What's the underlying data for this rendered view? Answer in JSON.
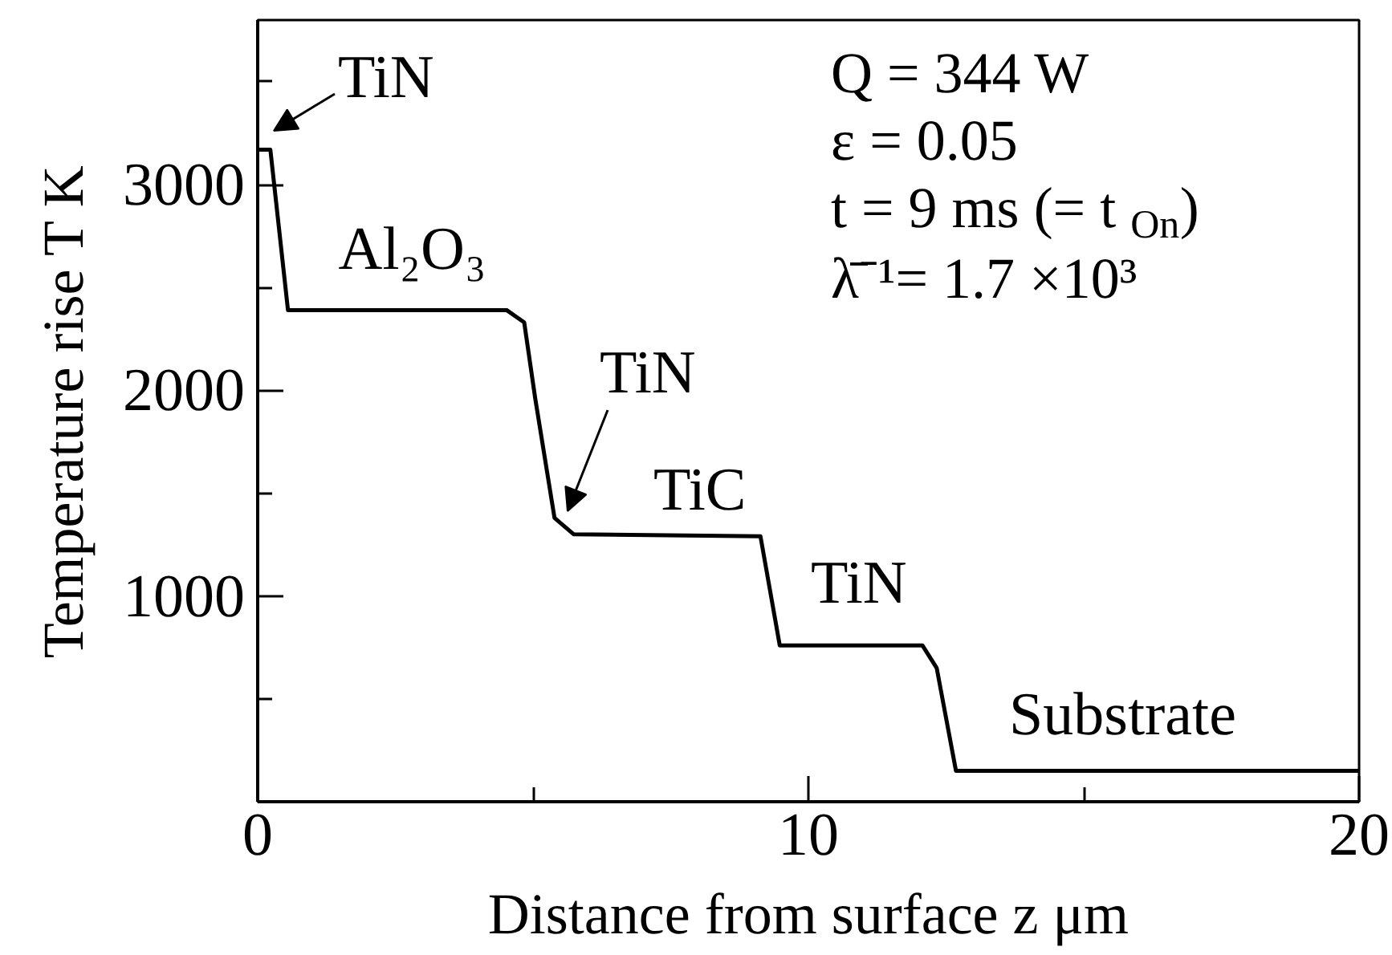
{
  "chart_data": {
    "type": "line",
    "xlabel": "Distance from surface z μm",
    "ylabel": "Temperature rise T K",
    "x": [
      0,
      0.23,
      0.55,
      4.52,
      4.84,
      5.04,
      5.39,
      5.74,
      9.13,
      9.48,
      12.07,
      12.33,
      12.68,
      20
    ],
    "series": [
      {
        "color": "#000000",
        "values": [
          3170,
          3170,
          2390,
          2390,
          2330,
          1960,
          1380,
          1300,
          1290,
          760,
          760,
          650,
          150,
          150
        ]
      }
    ],
    "xlim": [
      0,
      20
    ],
    "ylim": [
      0,
      3800
    ],
    "xticks": [
      0,
      {
        "value": 5,
        "label": null
      },
      10,
      {
        "value": 15,
        "label": null
      },
      20
    ],
    "yticks": [
      {
        "value": 500,
        "label": null
      },
      1000,
      {
        "value": 1500,
        "label": null
      },
      2000,
      {
        "value": 2500,
        "label": null
      },
      3000,
      {
        "value": 3500,
        "label": null
      }
    ],
    "annotations": [
      "Q = 344 W",
      "ε = 0.05",
      "t  = 9 ms (= t$_{On}$)",
      "λ̄⁻¹= 1.7 ×10³",
      "TiN",
      "Al₂O₃",
      "TiN",
      "TiC",
      "TiN",
      "Substrate"
    ]
  }
}
